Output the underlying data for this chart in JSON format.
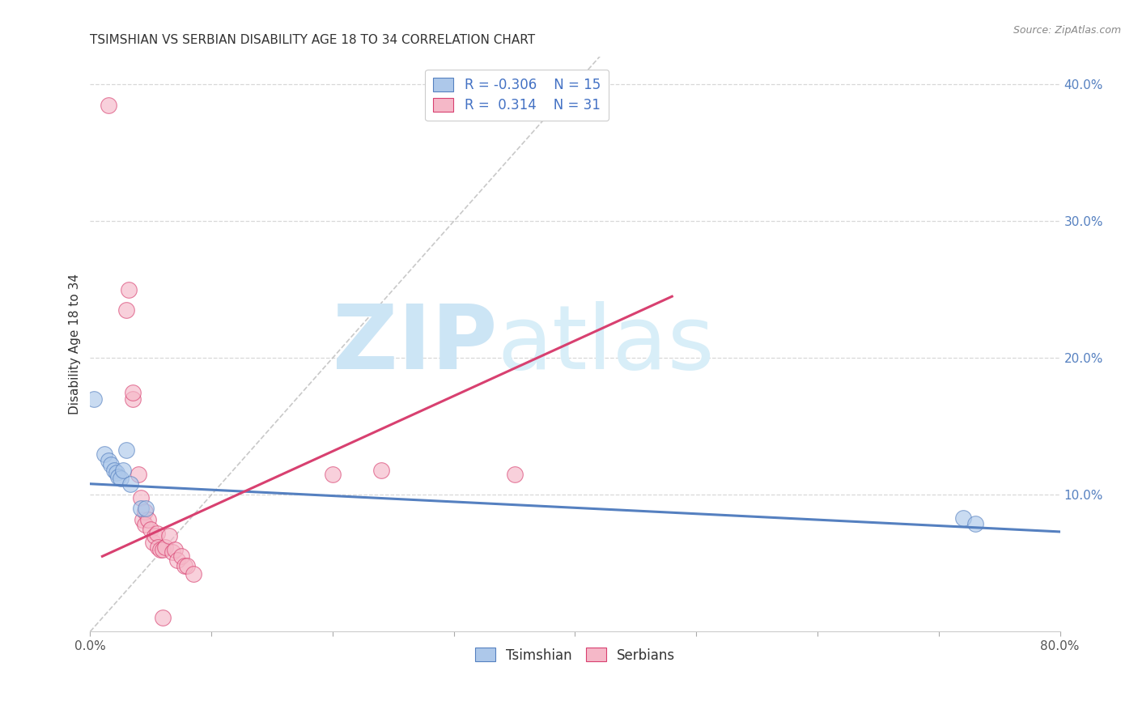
{
  "title": "TSIMSHIAN VS SERBIAN DISABILITY AGE 18 TO 34 CORRELATION CHART",
  "source": "Source: ZipAtlas.com",
  "ylabel": "Disability Age 18 to 34",
  "xlim": [
    0.0,
    0.8
  ],
  "ylim": [
    0.0,
    0.42
  ],
  "xticks": [
    0.0,
    0.1,
    0.2,
    0.3,
    0.4,
    0.5,
    0.6,
    0.7,
    0.8
  ],
  "xticklabels": [
    "0.0%",
    "",
    "",
    "",
    "",
    "",
    "",
    "",
    "80.0%"
  ],
  "yticks_right": [
    0.1,
    0.2,
    0.3,
    0.4
  ],
  "ytick_labels_right": [
    "10.0%",
    "20.0%",
    "30.0%",
    "40.0%"
  ],
  "r1_val": "-0.306",
  "n1_val": "15",
  "r2_val": "0.314",
  "n2_val": "31",
  "watermark_zip": "ZIP",
  "watermark_atlas": "atlas",
  "watermark_color": "#cce5f5",
  "background_color": "#ffffff",
  "grid_color": "#d8d8d8",
  "diagonal_line_color": "#bbbbbb",
  "tsimshian_color": "#adc8ea",
  "serbian_color": "#f5b8c8",
  "tsimshian_line_color": "#5580c0",
  "serbian_line_color": "#d84070",
  "tsimshian_scatter": [
    [
      0.003,
      0.17
    ],
    [
      0.012,
      0.13
    ],
    [
      0.015,
      0.125
    ],
    [
      0.017,
      0.122
    ],
    [
      0.02,
      0.118
    ],
    [
      0.022,
      0.116
    ],
    [
      0.023,
      0.113
    ],
    [
      0.025,
      0.112
    ],
    [
      0.027,
      0.118
    ],
    [
      0.03,
      0.133
    ],
    [
      0.033,
      0.108
    ],
    [
      0.042,
      0.09
    ],
    [
      0.046,
      0.09
    ],
    [
      0.72,
      0.083
    ],
    [
      0.73,
      0.079
    ]
  ],
  "serbian_scatter": [
    [
      0.015,
      0.385
    ],
    [
      0.03,
      0.235
    ],
    [
      0.032,
      0.25
    ],
    [
      0.035,
      0.17
    ],
    [
      0.035,
      0.175
    ],
    [
      0.04,
      0.115
    ],
    [
      0.042,
      0.098
    ],
    [
      0.043,
      0.082
    ],
    [
      0.045,
      0.088
    ],
    [
      0.045,
      0.078
    ],
    [
      0.048,
      0.082
    ],
    [
      0.05,
      0.075
    ],
    [
      0.052,
      0.065
    ],
    [
      0.053,
      0.07
    ],
    [
      0.055,
      0.072
    ],
    [
      0.056,
      0.062
    ],
    [
      0.058,
      0.06
    ],
    [
      0.06,
      0.06
    ],
    [
      0.062,
      0.062
    ],
    [
      0.065,
      0.07
    ],
    [
      0.068,
      0.058
    ],
    [
      0.07,
      0.06
    ],
    [
      0.072,
      0.052
    ],
    [
      0.075,
      0.055
    ],
    [
      0.078,
      0.048
    ],
    [
      0.08,
      0.048
    ],
    [
      0.085,
      0.042
    ],
    [
      0.2,
      0.115
    ],
    [
      0.24,
      0.118
    ],
    [
      0.35,
      0.115
    ],
    [
      0.06,
      0.01
    ]
  ],
  "tsimshian_trend_x": [
    0.0,
    0.8
  ],
  "tsimshian_trend_y": [
    0.108,
    0.073
  ],
  "serbian_trend_x": [
    0.01,
    0.48
  ],
  "serbian_trend_y": [
    0.055,
    0.245
  ]
}
